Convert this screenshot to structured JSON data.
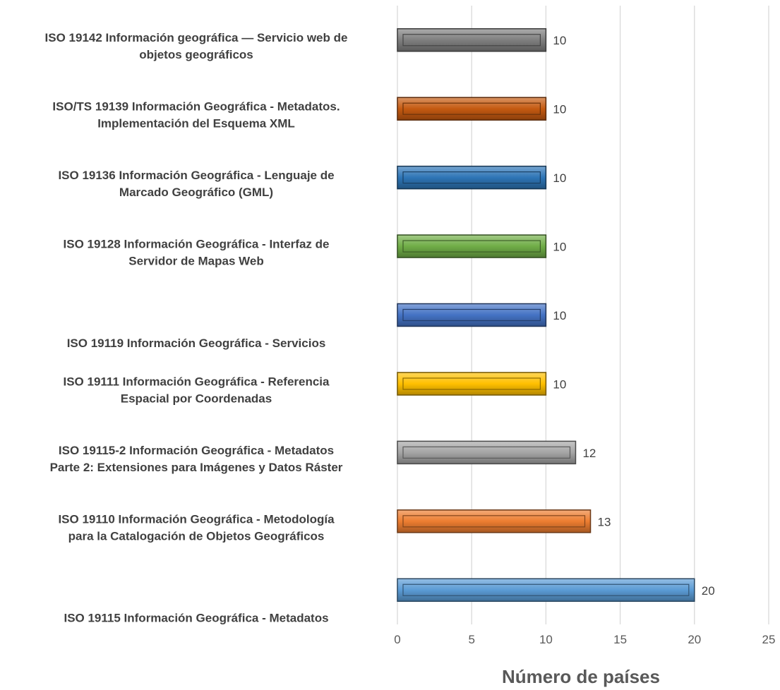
{
  "chart_data": {
    "type": "bar",
    "orientation": "horizontal",
    "categories": [
      [
        "ISO 19142 Información geográfica — Servicio web de",
        "objetos geográficos"
      ],
      [
        "ISO/TS 19139 Información Geográfica - Metadatos.",
        "Implementación del Esquema XML"
      ],
      [
        "ISO 19136 Información Geográfica - Lenguaje de",
        "Marcado Geográfico (GML)"
      ],
      [
        "ISO 19128 Información Geográfica - Interfaz de",
        "Servidor de Mapas Web"
      ],
      [
        "ISO 19119 Información Geográfica - Servicios"
      ],
      [
        "ISO 19111 Información Geográfica - Referencia",
        "Espacial por Coordenadas"
      ],
      [
        "ISO 19115-2 Información Geográfica - Metadatos",
        "Parte 2: Extensiones para Imágenes y Datos Ráster"
      ],
      [
        "ISO 19110 Información Geográfica - Metodología",
        "para la Catalogación de Objetos Geográficos"
      ],
      [
        "ISO 19115 Información Geográfica - Metadatos"
      ]
    ],
    "values": [
      10,
      10,
      10,
      10,
      10,
      10,
      12,
      13,
      20
    ],
    "bar_colors": [
      "#7f7f7f",
      "#c55a11",
      "#2e75b6",
      "#70ad47",
      "#4472c4",
      "#ffc000",
      "#a5a5a5",
      "#ed7d31",
      "#5b9bd5"
    ],
    "data_labels": [
      "10",
      "10",
      "10",
      "10",
      "10",
      "10",
      "12",
      "13",
      "20"
    ],
    "xlabel": "Número de países",
    "ylabel": "",
    "xlim": [
      0,
      25
    ],
    "x_ticks": [
      "0",
      "5",
      "10",
      "15",
      "20",
      "25"
    ],
    "grid": true,
    "legend": "none"
  }
}
